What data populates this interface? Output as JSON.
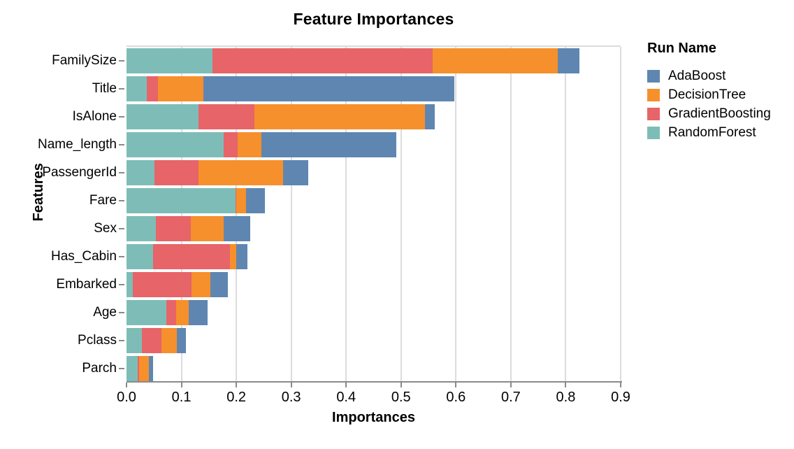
{
  "title": "Feature Importances",
  "legend": {
    "title": "Run Name",
    "position": "right",
    "items": [
      {
        "label": "AdaBoost",
        "color": "#5e86b1"
      },
      {
        "label": "DecisionTree",
        "color": "#f6902c"
      },
      {
        "label": "GradientBoosting",
        "color": "#e76468"
      },
      {
        "label": "RandomForest",
        "color": "#7ebdb7"
      }
    ]
  },
  "chart_data": {
    "type": "bar",
    "orientation": "horizontal",
    "stacked": true,
    "title": "Feature Importances",
    "xlabel": "Importances",
    "ylabel": "Features",
    "xlim": [
      0,
      0.9
    ],
    "xticks": [
      0.0,
      0.1,
      0.2,
      0.3,
      0.4,
      0.5,
      0.6,
      0.7,
      0.8,
      0.9
    ],
    "grid": true,
    "gridline_color": "#dcdcdc",
    "axis_line_color": "#8a8a8a",
    "categories": [
      "FamilySize",
      "Title",
      "IsAlone",
      "Name_length",
      "PassengerId",
      "Fare",
      "Sex",
      "Has_Cabin",
      "Embarked",
      "Age",
      "Pclass",
      "Parch"
    ],
    "stack_order_left_to_right": [
      "RandomForest",
      "GradientBoosting",
      "DecisionTree",
      "AdaBoost"
    ],
    "series": [
      {
        "name": "RandomForest",
        "color": "#7ebdb7",
        "values": [
          0.157,
          0.037,
          0.131,
          0.177,
          0.051,
          0.199,
          0.054,
          0.049,
          0.012,
          0.072,
          0.028,
          0.021
        ]
      },
      {
        "name": "GradientBoosting",
        "color": "#e76468",
        "values": [
          0.4,
          0.02,
          0.102,
          0.026,
          0.08,
          0.001,
          0.063,
          0.14,
          0.107,
          0.019,
          0.036,
          0.002
        ]
      },
      {
        "name": "DecisionTree",
        "color": "#f6902c",
        "values": [
          0.229,
          0.083,
          0.31,
          0.043,
          0.154,
          0.018,
          0.06,
          0.011,
          0.034,
          0.022,
          0.028,
          0.018
        ]
      },
      {
        "name": "AdaBoost",
        "color": "#5e86b1",
        "values": [
          0.039,
          0.457,
          0.018,
          0.245,
          0.046,
          0.034,
          0.048,
          0.02,
          0.032,
          0.035,
          0.016,
          0.007
        ]
      }
    ]
  }
}
